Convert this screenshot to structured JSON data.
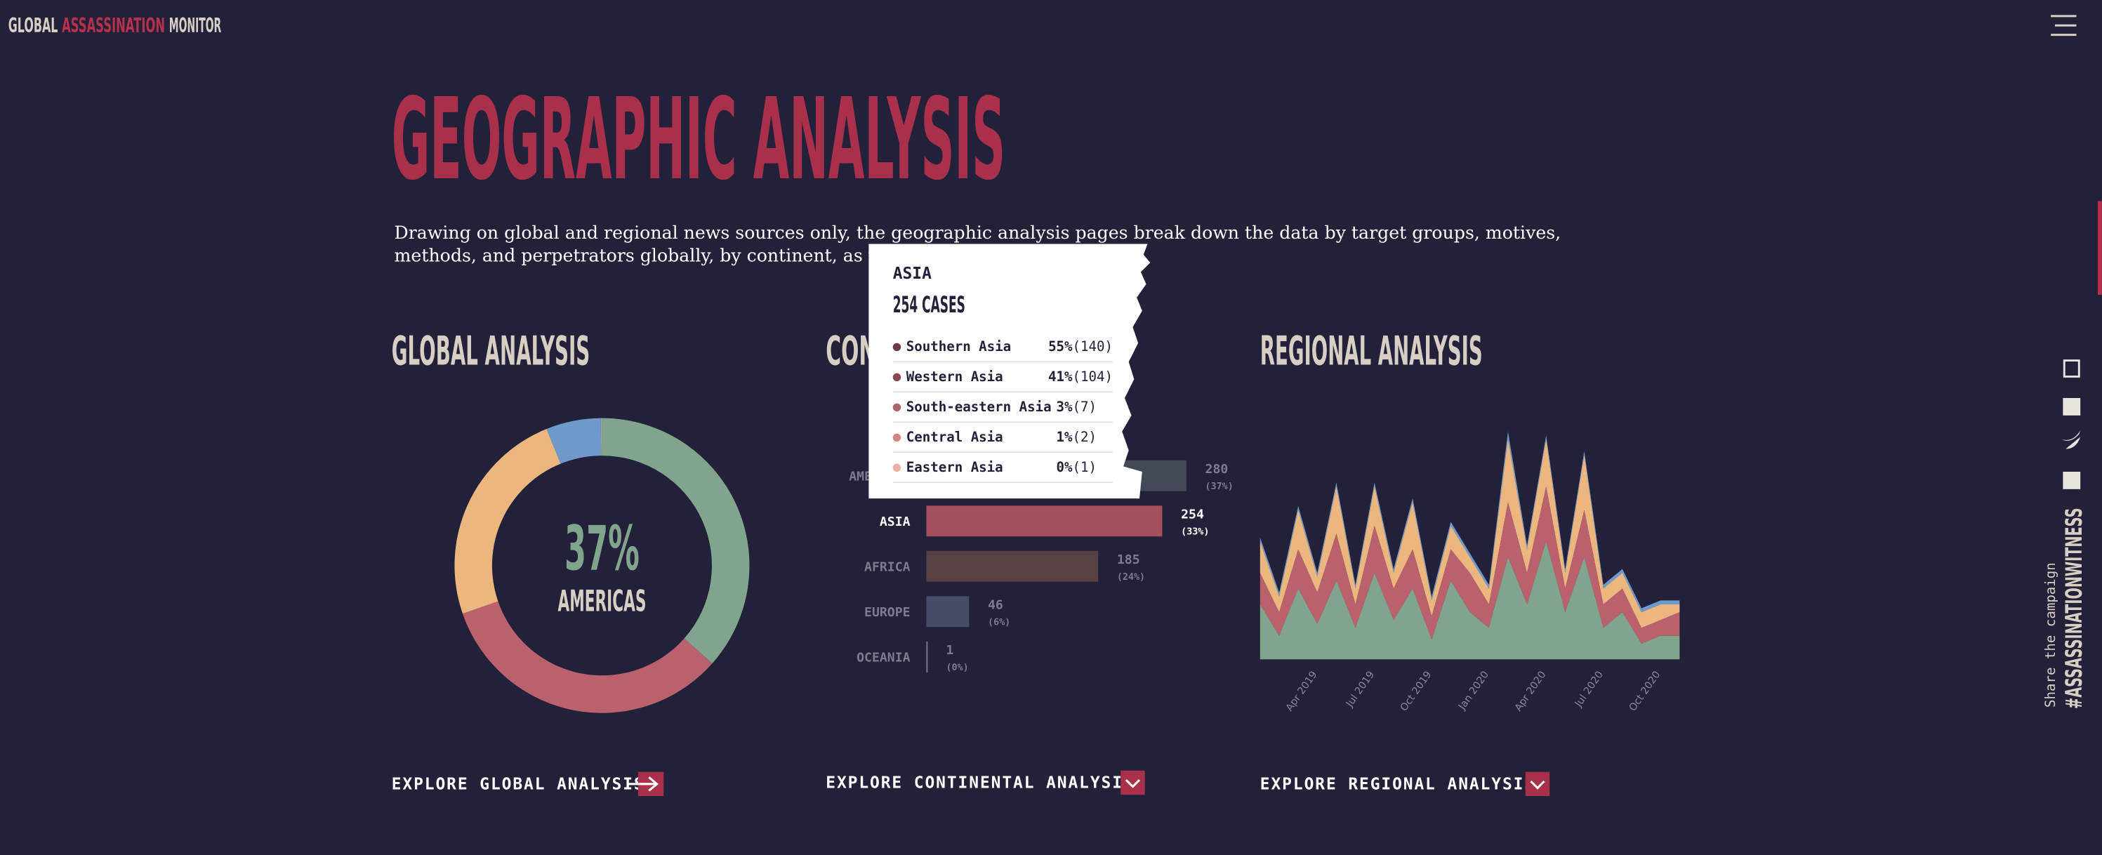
{
  "header": {
    "brand": [
      "GLOBAL",
      "ASSASSINATION",
      "MONITOR"
    ]
  },
  "title": "GEOGRAPHIC ANALYSIS",
  "intro": [
    "Drawing on global and regional news sources only, the geographic analysis pages break down the data by target groups, motives,",
    "methods, and perpetrators globally, by continent, as well as by s"
  ],
  "global": {
    "type": "pie",
    "heading": "GLOBAL ANALYSIS",
    "values": [
      280,
      254,
      185,
      46,
      1
    ],
    "colors": [
      "#80a58c",
      "#b9616c",
      "#ebb77f",
      "#6f98cb",
      "#9aa0a8"
    ],
    "center_value": "37%",
    "center_label": "AMERICAS",
    "link": "EXPLORE GLOBAL ANALYSIS"
  },
  "continental": {
    "type": "bar",
    "heading": "CONTINENTAL ANALYSIS",
    "categories": [
      "AMERICAS",
      "ASIA",
      "AFRICA",
      "EUROPE",
      "OCEANIA"
    ],
    "values": [
      280,
      254,
      185,
      46,
      1
    ],
    "value_labels": [
      "(37%)",
      "(33%)",
      "(24%)",
      "(6%)",
      "(0%)"
    ],
    "colors": [
      "#4a505c",
      "#a04f5b",
      "#5e4644",
      "#4a5470",
      "#8a8a9a"
    ],
    "link": "EXPLORE CONTINENTAL ANALYSIS"
  },
  "tooltip": {
    "title": "ASIA",
    "subtitle": "254 CASES",
    "rows": [
      {
        "name": "Southern Asia",
        "share": "55%",
        "count": "(140)",
        "color": "#6d3b44"
      },
      {
        "name": "Western Asia",
        "share": "41%",
        "count": "(104)",
        "color": "#8a4652"
      },
      {
        "name": "South-eastern Asia",
        "share": "3%",
        "count": "(7)",
        "color": "#b0626c"
      },
      {
        "name": "Central Asia",
        "share": "1%",
        "count": "(2)",
        "color": "#d48683"
      },
      {
        "name": "Eastern Asia",
        "share": "0%",
        "count": "(1)",
        "color": "#ecb0aa"
      }
    ]
  },
  "regional": {
    "type": "area",
    "heading": "REGIONAL ANALYSIS",
    "categories": [
      null,
      null,
      null,
      "Apr 2019",
      null,
      null,
      "Jul 2019",
      null,
      null,
      "Oct 2019",
      null,
      null,
      "Jan 2020",
      null,
      null,
      "Apr 2020",
      null,
      null,
      "Jul 2020",
      null,
      null,
      "Oct 2020",
      null
    ],
    "series": [
      {
        "color": "#80a58c",
        "values": [
          14,
          6,
          18,
          9,
          20,
          8,
          22,
          10,
          18,
          5,
          20,
          12,
          8,
          26,
          14,
          30,
          12,
          26,
          8,
          12,
          4,
          6,
          6
        ]
      },
      {
        "color": "#b9616c",
        "values": [
          8,
          6,
          10,
          8,
          12,
          6,
          12,
          8,
          10,
          6,
          8,
          10,
          6,
          14,
          8,
          14,
          6,
          12,
          6,
          6,
          4,
          4,
          6
        ]
      },
      {
        "color": "#ebb77f",
        "values": [
          8,
          4,
          10,
          4,
          12,
          4,
          10,
          4,
          12,
          4,
          6,
          4,
          4,
          16,
          6,
          12,
          4,
          14,
          4,
          4,
          4,
          4,
          2
        ]
      },
      {
        "color": "#6f98cb",
        "values": [
          1,
          1,
          1,
          1,
          1,
          1,
          1,
          1,
          1,
          1,
          1,
          1,
          1,
          2,
          1,
          1,
          1,
          1,
          1,
          1,
          1,
          1,
          1
        ]
      }
    ],
    "link": "EXPLORE REGIONAL ANALYSIS"
  },
  "share": {
    "label": "Share the campaign",
    "hashtag": "#ASSASSINATIONWITNESS"
  }
}
